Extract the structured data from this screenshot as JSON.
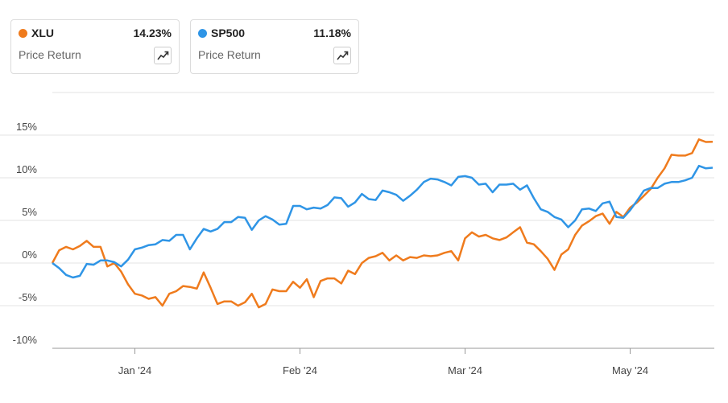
{
  "chart_data": {
    "type": "line",
    "series": [
      {
        "name": "XLU",
        "color": "#ef7b1d",
        "summary": "14.23%",
        "summary_label": "Price Return",
        "values": [
          0.0,
          1.5,
          1.9,
          1.6,
          2.0,
          2.6,
          1.9,
          1.9,
          -0.4,
          0.0,
          -1.0,
          -2.5,
          -3.6,
          -3.8,
          -4.2,
          -4.0,
          -5.0,
          -3.6,
          -3.3,
          -2.7,
          -2.8,
          -3.0,
          -1.1,
          -2.9,
          -4.8,
          -4.5,
          -4.5,
          -5.0,
          -4.6,
          -3.6,
          -5.2,
          -4.8,
          -3.1,
          -3.3,
          -3.3,
          -2.2,
          -2.9,
          -1.9,
          -4.0,
          -2.1,
          -1.8,
          -1.8,
          -2.4,
          -0.9,
          -1.3,
          0.0,
          0.6,
          0.8,
          1.2,
          0.3,
          0.9,
          0.3,
          0.7,
          0.6,
          0.9,
          0.8,
          0.9,
          1.2,
          1.4,
          0.3,
          2.9,
          3.6,
          3.1,
          3.3,
          2.9,
          2.7,
          3.0,
          3.6,
          4.2,
          2.4,
          2.2,
          1.4,
          0.5,
          -0.8,
          1.0,
          1.6,
          3.3,
          4.4,
          4.9,
          5.5,
          5.8,
          4.6,
          6.0,
          5.4,
          6.5,
          7.1,
          7.9,
          8.7,
          10.0,
          11.1,
          12.7,
          12.6,
          12.6,
          12.9,
          14.5,
          14.2,
          14.23
        ]
      },
      {
        "name": "SP500",
        "color": "#2f95e6",
        "summary": "11.18%",
        "summary_label": "Price Return",
        "values": [
          0.0,
          -0.6,
          -1.4,
          -1.7,
          -1.5,
          -0.1,
          -0.2,
          0.3,
          0.3,
          0.1,
          -0.4,
          0.4,
          1.6,
          1.8,
          2.1,
          2.2,
          2.7,
          2.6,
          3.3,
          3.3,
          1.6,
          2.9,
          4.0,
          3.7,
          4.0,
          4.8,
          4.8,
          5.4,
          5.3,
          3.9,
          5.0,
          5.5,
          5.1,
          4.5,
          4.6,
          6.7,
          6.7,
          6.3,
          6.5,
          6.4,
          6.8,
          7.7,
          7.6,
          6.6,
          7.1,
          8.1,
          7.5,
          7.4,
          8.5,
          8.3,
          8.0,
          7.3,
          7.9,
          8.6,
          9.5,
          9.9,
          9.8,
          9.5,
          9.1,
          10.1,
          10.2,
          10.0,
          9.2,
          9.3,
          8.3,
          9.2,
          9.2,
          9.3,
          8.6,
          9.1,
          7.6,
          6.3,
          6.0,
          5.4,
          5.1,
          4.2,
          5.0,
          6.3,
          6.4,
          6.1,
          7.0,
          7.2,
          5.4,
          5.3,
          6.2,
          7.3,
          8.5,
          8.8,
          8.8,
          9.3,
          9.5,
          9.5,
          9.7,
          10.0,
          11.4,
          11.1,
          11.18
        ]
      }
    ],
    "xlim": [
      0,
      96
    ],
    "xticks": [
      {
        "value": 12,
        "label": "Jan '24"
      },
      {
        "value": 36,
        "label": "Feb '24"
      },
      {
        "value": 60,
        "label": "Mar '24"
      },
      {
        "value": 84,
        "label": "May '24"
      }
    ],
    "ylim": [
      -10,
      20
    ],
    "yticks": [
      {
        "value": -10,
        "label": "-10%"
      },
      {
        "value": -5,
        "label": "-5%"
      },
      {
        "value": 0,
        "label": "0%"
      },
      {
        "value": 5,
        "label": "5%"
      },
      {
        "value": 10,
        "label": "10%"
      },
      {
        "value": 15,
        "label": "15%"
      }
    ],
    "grid": true
  }
}
